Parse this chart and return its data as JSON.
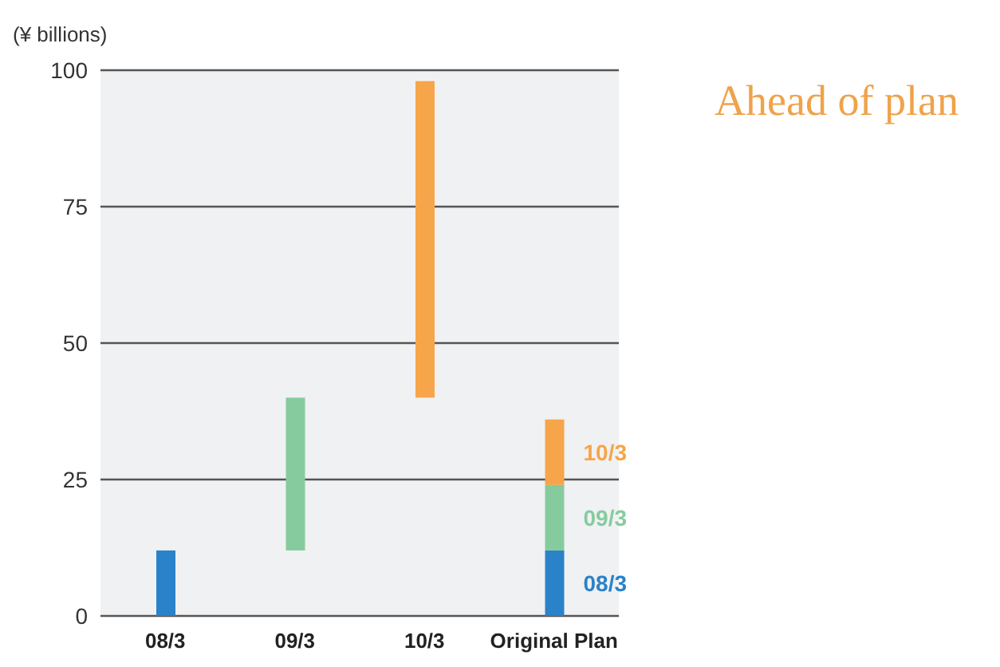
{
  "chart_data": {
    "type": "bar",
    "ylabel": "(¥ billions)",
    "annotations": [
      "Ahead of plan"
    ],
    "categories": [
      "08/3",
      "09/3",
      "10/3",
      "Original Plan"
    ],
    "series": [
      {
        "name": "08/3",
        "color": "#2a82c9",
        "values": [
          12,
          null,
          null,
          12
        ],
        "base": [
          0,
          null,
          null,
          0
        ]
      },
      {
        "name": "09/3",
        "color": "#86cb9e",
        "values": [
          null,
          28,
          null,
          12
        ],
        "base": [
          null,
          12,
          null,
          12
        ]
      },
      {
        "name": "10/3",
        "color": "#f7a54a",
        "values": [
          null,
          null,
          58,
          12
        ],
        "base": [
          null,
          null,
          40,
          24
        ]
      }
    ],
    "ylim": [
      0,
      100
    ],
    "yticks": [
      0,
      25,
      50,
      75,
      100
    ],
    "grid": "y"
  }
}
